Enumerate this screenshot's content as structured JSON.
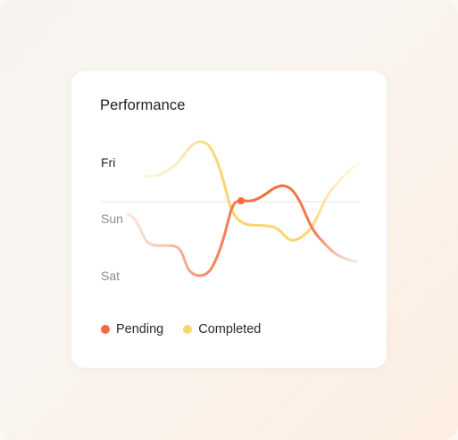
{
  "card": {
    "title": "Performance"
  },
  "chart_data": {
    "type": "line",
    "title": "Performance",
    "y_categories": [
      "Fri",
      "Sun",
      "Sat"
    ],
    "series": [
      {
        "name": "Pending",
        "color": "#f26a3b"
      },
      {
        "name": "Completed",
        "color": "#f9d56e"
      }
    ],
    "grid": false
  },
  "legend": {
    "pending": {
      "label": "Pending",
      "color": "#f26a3b"
    },
    "completed": {
      "label": "Completed",
      "color": "#f9d56e"
    }
  },
  "colors": {
    "pending": "#f26a3b",
    "pending_light": "#f8b8a0",
    "completed": "#f9d56e",
    "completed_light": "#fbe7b6",
    "reference_line": "#ededed"
  }
}
